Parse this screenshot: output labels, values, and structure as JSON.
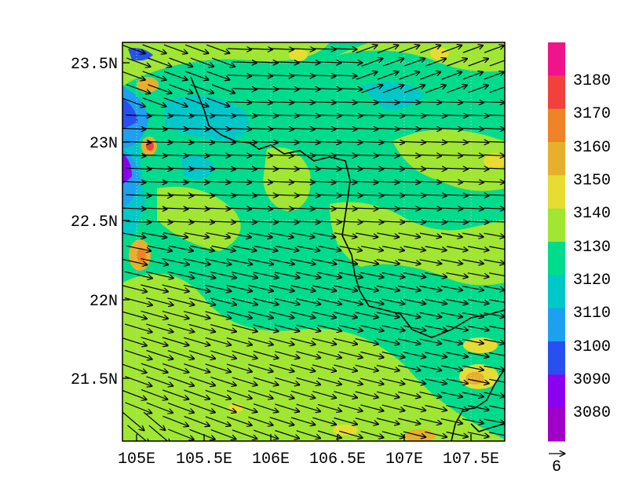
{
  "map": {
    "type": "contour-with-vectors",
    "lon_range": [
      104.95,
      107.8
    ],
    "lat_range": [
      21.1,
      23.65
    ],
    "lon_ticks": [
      105,
      105.5,
      106,
      106.5,
      107,
      107.5
    ],
    "lon_tick_labels": [
      "105E",
      "105.5E",
      "106E",
      "106.5E",
      "107E",
      "107.5E"
    ],
    "lat_ticks": [
      21.5,
      22,
      22.5,
      23,
      23.5
    ],
    "lat_tick_labels": [
      "21.5N",
      "22N",
      "22.5N",
      "23N",
      "23.5N"
    ],
    "gridlines": "dotted",
    "vector_reference_label": "6",
    "prevailing_wind": "westerly"
  },
  "colorbar": {
    "levels": [
      "3180",
      "3170",
      "3160",
      "3150",
      "3140",
      "3130",
      "3120",
      "3110",
      "3100",
      "3090",
      "3080"
    ],
    "colors": [
      "#f0148c",
      "#f0413c",
      "#f08228",
      "#e6af2d",
      "#e6dc32",
      "#a0e632",
      "#00dc8c",
      "#00c8c8",
      "#1ea0f0",
      "#2850f0",
      "#8c00f0",
      "#a000c8"
    ]
  }
}
